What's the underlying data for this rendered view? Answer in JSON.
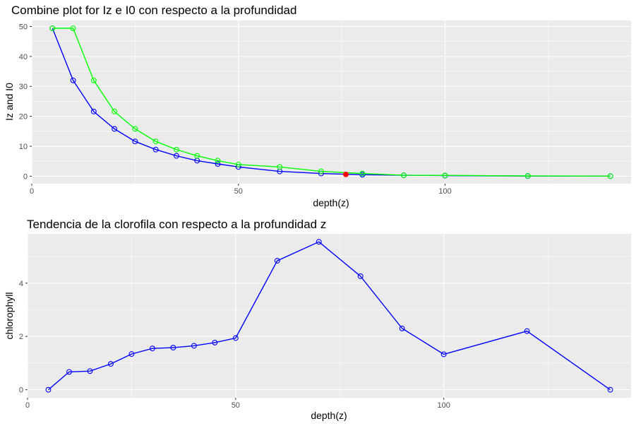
{
  "chart_data": [
    {
      "type": "line",
      "title": "Combine plot for Iz e I0 con respecto a la profundidad",
      "xlabel": "depth(z)",
      "ylabel": "Iz and I0",
      "xlim": [
        0,
        145
      ],
      "ylim": [
        -2.5,
        52
      ],
      "x_ticks": [
        0,
        50,
        100
      ],
      "y_ticks": [
        0,
        10,
        20,
        30,
        40,
        50
      ],
      "grid": true,
      "legend": "none",
      "series": [
        {
          "color": "#0000ff",
          "marker": "open-circle",
          "x": [
            5,
            10,
            15,
            20,
            25,
            30,
            35,
            40,
            45,
            50,
            60,
            70,
            80,
            90,
            100,
            120,
            140
          ],
          "y": [
            49.4,
            32.0,
            21.6,
            15.8,
            11.6,
            8.9,
            6.8,
            5.2,
            4.1,
            3.1,
            1.6,
            0.9,
            0.5,
            0.3,
            0.2,
            0.05,
            0.02
          ]
        },
        {
          "color": "#00ff00",
          "marker": "open-circle",
          "x": [
            5,
            10,
            15,
            20,
            25,
            30,
            35,
            40,
            45,
            50,
            60,
            70,
            80,
            90,
            100,
            120,
            140
          ],
          "y": [
            49.4,
            49.4,
            32.0,
            21.6,
            15.8,
            11.6,
            8.9,
            6.8,
            5.2,
            3.9,
            3.1,
            1.6,
            0.9,
            0.3,
            0.25,
            0.1,
            0.03
          ]
        }
      ],
      "highlight": {
        "x": 76,
        "y": 0.6,
        "color": "#ff0000"
      }
    },
    {
      "type": "line",
      "title": "Tendencia de la clorofila con respecto a la profundidad z",
      "xlabel": "depth(z)",
      "ylabel": "chlorophyll",
      "xlim": [
        0,
        145
      ],
      "ylim": [
        -0.3,
        5.85
      ],
      "x_ticks": [
        0,
        50,
        100
      ],
      "y_ticks": [
        0,
        2,
        4
      ],
      "grid": true,
      "legend": "none",
      "series": [
        {
          "color": "#0000ff",
          "marker": "open-circle",
          "x": [
            5,
            10,
            15,
            20,
            25,
            30,
            35,
            40,
            45,
            50,
            60,
            70,
            80,
            90,
            100,
            120,
            140
          ],
          "y": [
            0,
            0.67,
            0.7,
            0.97,
            1.34,
            1.55,
            1.58,
            1.65,
            1.77,
            1.94,
            4.84,
            5.55,
            4.26,
            2.3,
            1.33,
            2.2,
            0
          ]
        }
      ]
    }
  ]
}
